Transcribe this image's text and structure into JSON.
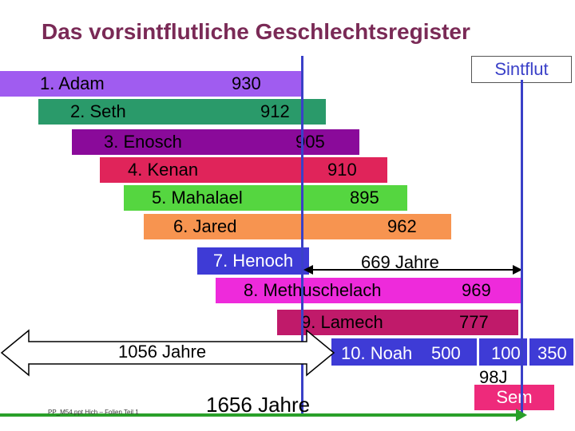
{
  "title": "Das vorsintflutliche Geschlechtsregister",
  "sintflut_label": "Sintflut",
  "patriarchs": [
    {
      "label": "1. Adam",
      "age": "930",
      "color": "#a05cf0"
    },
    {
      "label": "2. Seth",
      "age": "912",
      "color": "#2a9a6a"
    },
    {
      "label": "3. Enosch",
      "age": "905",
      "color": "#8a0a9a"
    },
    {
      "label": "4. Kenan",
      "age": "910",
      "color": "#e0245a"
    },
    {
      "label": "5. Mahalael",
      "age": "895",
      "color": "#55d640"
    },
    {
      "label": "6. Jared",
      "age": "962",
      "color": "#f79450"
    },
    {
      "label": "7. Henoch",
      "color": "#3e3bd6"
    },
    {
      "label": "8. Methuschelach",
      "age": "969",
      "color": "#ee2adb"
    },
    {
      "label": "9. Lamech",
      "age": "777",
      "color": "#c01a6a"
    },
    {
      "label": "10. Noah",
      "age": "500",
      "color": "#3e3bd6"
    }
  ],
  "henoch_span": "669 Jahre",
  "noah_extra_1": "100",
  "noah_extra_2": "350",
  "years_98": "98J",
  "sem_label": "Sem",
  "span_left": "1056 Jahre",
  "span_total": "1656 Jahre",
  "footer_left": "PP_M54.ppt Hich – Folien Teil 1",
  "colors": {
    "title": "#7a2a56",
    "timeline_blue": "#3a40c8",
    "timeline_green": "#2aa02a"
  }
}
